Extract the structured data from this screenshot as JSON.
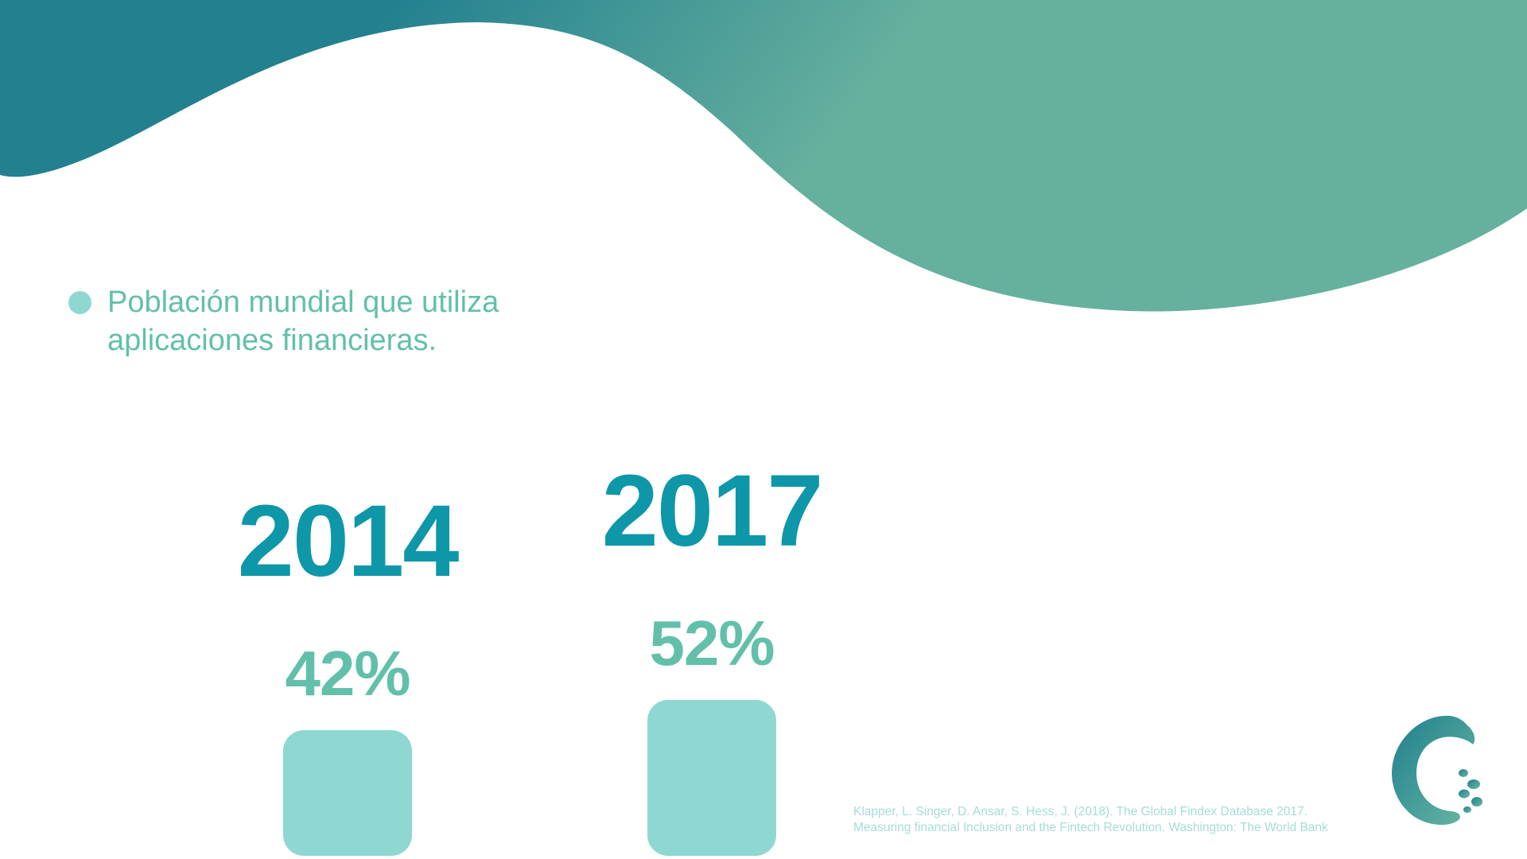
{
  "colors": {
    "wave_dark": "#22808f",
    "wave_light": "#66b09e",
    "year_text": "#0e97a8",
    "percent_text": "#62c0aa",
    "bar_fill": "#8fd8d2",
    "bullet_text": "#62c0aa",
    "bullet_dot": "#8fd8d2",
    "citation_text": "#a6dcd5",
    "logo_dark": "#1e7f8d",
    "logo_light": "#6ab8a3"
  },
  "bullet": {
    "text": "Población mundial que utiliza aplicaciones financieras."
  },
  "chart_data": {
    "type": "bar",
    "categories": [
      "2014",
      "2017"
    ],
    "values": [
      42,
      52
    ],
    "data_labels": [
      "42%",
      "52%"
    ],
    "unit": "%",
    "title": "",
    "xlabel": "",
    "ylabel": "",
    "grid": false,
    "legend": "none"
  },
  "citation": {
    "line1": "Klapper, L. Singer, D. Ansar, S. Hess, J. (2018). The Global Findex Database 2017.",
    "line2": "Measuring financial Inclusion and the Fintech Revolution. Washington: The World Bank"
  },
  "logo": {
    "icon": "logo-icon"
  }
}
